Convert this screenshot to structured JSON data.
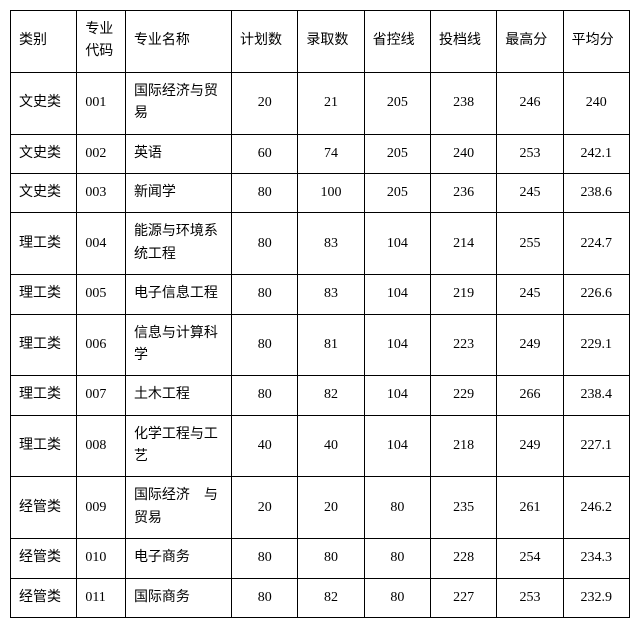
{
  "table": {
    "columns": [
      "类别",
      "专业代码",
      "专业名称",
      "计划数",
      "录取数",
      "省控线",
      "投档线",
      "最高分",
      "平均分"
    ],
    "rows": [
      [
        "文史类",
        "001",
        "国际经济与贸易",
        "20",
        "21",
        "205",
        "238",
        "246",
        "240"
      ],
      [
        "文史类",
        "002",
        "英语",
        "60",
        "74",
        "205",
        "240",
        "253",
        "242.1"
      ],
      [
        "文史类",
        "003",
        "新闻学",
        "80",
        "100",
        "205",
        "236",
        "245",
        "238.6"
      ],
      [
        "理工类",
        "004",
        "能源与环境系统工程",
        "80",
        "83",
        "104",
        "214",
        "255",
        "224.7"
      ],
      [
        "理工类",
        "005",
        "电子信息工程",
        "80",
        "83",
        "104",
        "219",
        "245",
        "226.6"
      ],
      [
        "理工类",
        "006",
        "信息与计算科学",
        "80",
        "81",
        "104",
        "223",
        "249",
        "229.1"
      ],
      [
        "理工类",
        "007",
        "土木工程",
        "80",
        "82",
        "104",
        "229",
        "266",
        "238.4"
      ],
      [
        "理工类",
        "008",
        "化学工程与工艺",
        "40",
        "40",
        "104",
        "218",
        "249",
        "227.1"
      ],
      [
        "经管类",
        "009",
        "国际经济　与贸易",
        "20",
        "20",
        "80",
        "235",
        "261",
        "246.2"
      ],
      [
        "经管类",
        "010",
        "电子商务",
        "80",
        "80",
        "80",
        "228",
        "254",
        "234.3"
      ],
      [
        "经管类",
        "011",
        "国际商务",
        "80",
        "82",
        "80",
        "227",
        "253",
        "232.9"
      ]
    ],
    "col_align": [
      "left",
      "left",
      "left",
      "center",
      "center",
      "center",
      "center",
      "center",
      "center"
    ],
    "col_class": [
      "col-cat",
      "col-code",
      "col-name",
      "col-num",
      "col-num",
      "col-num",
      "col-num",
      "col-num",
      "col-num"
    ]
  }
}
